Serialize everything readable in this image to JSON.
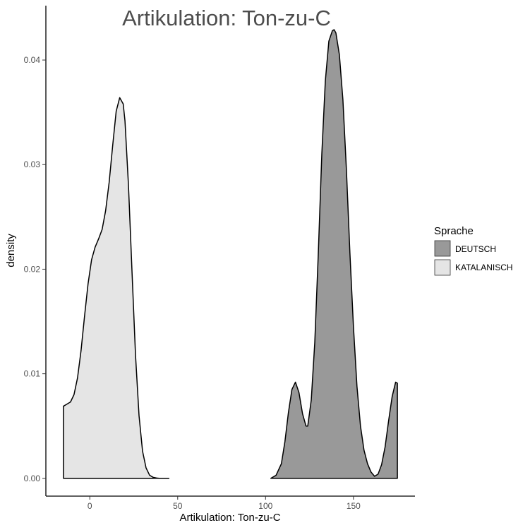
{
  "chart_data": {
    "type": "area",
    "title": "Artikulation: Ton-zu-C",
    "xlabel": "Artikulation: Ton-zu-C",
    "ylabel": "density",
    "xlim": [
      -25,
      185
    ],
    "ylim": [
      -0.0017,
      0.0452
    ],
    "x_ticks": [
      0,
      50,
      100,
      150
    ],
    "y_ticks": [
      0.0,
      0.01,
      0.02,
      0.03,
      0.04
    ],
    "x_tick_labels": [
      "0",
      "50",
      "100",
      "150"
    ],
    "y_tick_labels": [
      "0.00",
      "0.01",
      "0.02",
      "0.03",
      "0.04"
    ],
    "grid": false,
    "legend": {
      "title": "Sprache",
      "position": "right"
    },
    "series": [
      {
        "name": "DEUTSCH",
        "color": "#999999",
        "x": [
          103,
          106,
          109,
          111,
          113,
          115,
          117,
          119,
          121,
          123,
          124,
          126,
          128,
          130,
          132,
          134,
          136,
          138,
          139,
          140,
          142,
          144,
          146,
          148,
          150,
          152,
          154,
          156,
          158,
          160,
          162,
          164,
          166,
          168,
          170,
          172,
          174,
          175
        ],
        "y": [
          0.0,
          0.0003,
          0.0014,
          0.0035,
          0.0063,
          0.0085,
          0.0092,
          0.0082,
          0.0062,
          0.005,
          0.005,
          0.0075,
          0.013,
          0.0215,
          0.031,
          0.038,
          0.0418,
          0.0428,
          0.0429,
          0.0426,
          0.0405,
          0.0362,
          0.0295,
          0.0215,
          0.0145,
          0.0088,
          0.005,
          0.0027,
          0.0014,
          0.0006,
          0.0002,
          0.0004,
          0.0013,
          0.003,
          0.0055,
          0.0078,
          0.0092,
          0.0091
        ]
      },
      {
        "name": "KATALANISCH",
        "color": "#e5e5e5",
        "x": [
          -15,
          -13,
          -11,
          -9,
          -7,
          -5,
          -3,
          -1,
          1,
          3,
          5,
          7,
          9,
          11,
          13,
          15,
          17,
          19,
          20,
          22,
          24,
          26,
          28,
          30,
          32,
          34,
          36,
          38,
          40,
          42,
          45
        ],
        "y": [
          0.0069,
          0.0071,
          0.0073,
          0.008,
          0.0096,
          0.0122,
          0.0155,
          0.0186,
          0.0209,
          0.0221,
          0.0229,
          0.0238,
          0.0256,
          0.0283,
          0.0318,
          0.0351,
          0.0364,
          0.0358,
          0.0342,
          0.028,
          0.0198,
          0.0118,
          0.006,
          0.0026,
          0.001,
          0.0003,
          0.0001,
          3e-05,
          0.0,
          0.0,
          0.0
        ]
      }
    ]
  }
}
